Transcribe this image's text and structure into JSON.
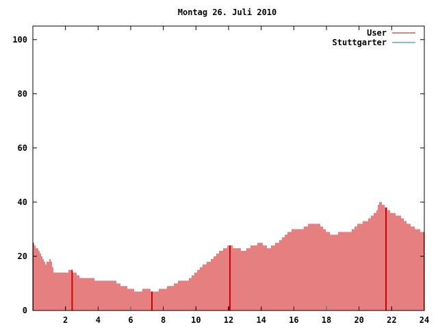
{
  "chart_data": {
    "type": "bar",
    "title": "Montag 26. Juli 2010",
    "xlabel": "",
    "ylabel": "",
    "xlim": [
      0,
      24
    ],
    "ylim": [
      0,
      105
    ],
    "grid": false,
    "legend_position": "top-right",
    "x_ticks": [
      "2",
      "4",
      "6",
      "8",
      "10",
      "12",
      "14",
      "16",
      "18",
      "20",
      "22",
      "24"
    ],
    "y_ticks": [
      "0",
      "20",
      "40",
      "60",
      "80",
      "100"
    ],
    "series": [
      {
        "name": "User",
        "color": "#cc0000",
        "profile": [
          [
            0.0,
            25
          ],
          [
            0.25,
            23
          ],
          [
            0.5,
            21
          ],
          [
            0.75,
            17
          ],
          [
            0.9,
            18
          ],
          [
            1.1,
            19
          ],
          [
            1.3,
            14
          ],
          [
            2.0,
            14
          ],
          [
            2.3,
            15
          ],
          [
            2.6,
            14
          ],
          [
            2.9,
            12
          ],
          [
            3.5,
            12
          ],
          [
            4.0,
            11
          ],
          [
            4.5,
            11
          ],
          [
            5.0,
            11
          ],
          [
            5.5,
            9
          ],
          [
            6.0,
            8
          ],
          [
            6.5,
            7
          ],
          [
            7.0,
            8
          ],
          [
            7.5,
            7
          ],
          [
            8.0,
            8
          ],
          [
            8.5,
            9
          ],
          [
            9.0,
            11
          ],
          [
            9.5,
            11
          ],
          [
            10.0,
            14
          ],
          [
            10.5,
            17
          ],
          [
            11.0,
            19
          ],
          [
            11.5,
            22
          ],
          [
            12.0,
            24
          ],
          [
            12.5,
            23
          ],
          [
            13.0,
            22
          ],
          [
            13.5,
            24
          ],
          [
            14.0,
            25
          ],
          [
            14.5,
            23
          ],
          [
            15.0,
            25
          ],
          [
            15.5,
            28
          ],
          [
            16.0,
            30
          ],
          [
            16.5,
            30
          ],
          [
            17.0,
            32
          ],
          [
            17.5,
            32
          ],
          [
            18.0,
            29
          ],
          [
            18.5,
            28
          ],
          [
            19.0,
            29
          ],
          [
            19.5,
            29
          ],
          [
            20.0,
            32
          ],
          [
            20.5,
            33
          ],
          [
            21.0,
            36
          ],
          [
            21.3,
            40
          ],
          [
            21.6,
            38
          ],
          [
            22.0,
            36
          ],
          [
            22.5,
            35
          ],
          [
            23.0,
            32
          ],
          [
            23.5,
            30
          ],
          [
            24.0,
            29
          ]
        ],
        "spikes": [
          2.4,
          7.3,
          12.1,
          21.65
        ]
      },
      {
        "name": "Stuttgarter",
        "color": "#008b8b",
        "values": []
      }
    ]
  }
}
